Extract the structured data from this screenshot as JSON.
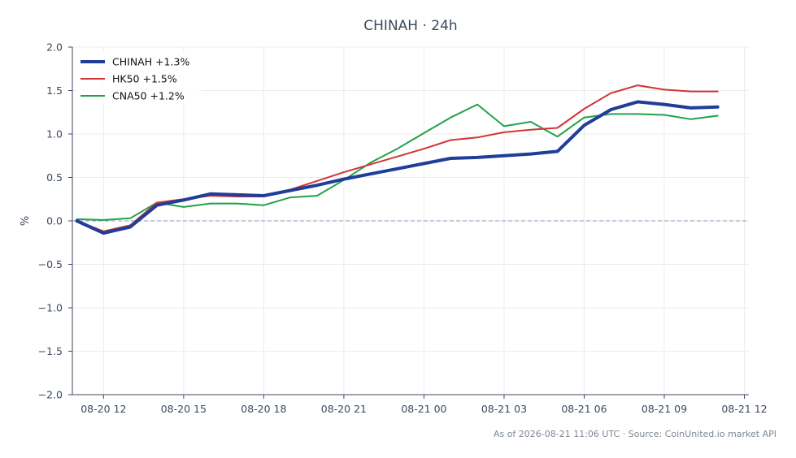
{
  "chart_data": {
    "type": "line",
    "title": "CHINAH · 24h",
    "ylabel": "%",
    "xlabel": "",
    "ylim": [
      -2.0,
      2.0
    ],
    "yticks": [
      -2.0,
      -1.5,
      -1.0,
      -0.5,
      0.0,
      0.5,
      1.0,
      1.5,
      2.0
    ],
    "ytick_labels": [
      "−2.0",
      "−1.5",
      "−1.0",
      "−0.5",
      "0.0",
      "0.5",
      "1.0",
      "1.5",
      "2.0"
    ],
    "xlim": [
      "2026-08-20 10:50",
      "2026-08-21 12:10"
    ],
    "xticks": [
      "2026-08-20 12:00",
      "2026-08-20 15:00",
      "2026-08-20 18:00",
      "2026-08-20 21:00",
      "2026-08-21 00:00",
      "2026-08-21 03:00",
      "2026-08-21 06:00",
      "2026-08-21 09:00",
      "2026-08-21 12:00"
    ],
    "xtick_labels": [
      "08-20 12",
      "08-20 15",
      "08-20 18",
      "08-20 21",
      "08-21 00",
      "08-21 03",
      "08-21 06",
      "08-21 09",
      "08-21 12"
    ],
    "x": [
      "2026-08-20 11:00",
      "2026-08-20 12:00",
      "2026-08-20 13:00",
      "2026-08-20 14:00",
      "2026-08-20 15:00",
      "2026-08-20 16:00",
      "2026-08-20 17:00",
      "2026-08-20 18:00",
      "2026-08-20 19:00",
      "2026-08-20 20:00",
      "2026-08-20 21:00",
      "2026-08-20 22:00",
      "2026-08-20 23:00",
      "2026-08-21 00:00",
      "2026-08-21 01:00",
      "2026-08-21 02:00",
      "2026-08-21 03:00",
      "2026-08-21 04:00",
      "2026-08-21 05:00",
      "2026-08-21 06:00",
      "2026-08-21 07:00",
      "2026-08-21 08:00",
      "2026-08-21 09:00",
      "2026-08-21 10:00",
      "2026-08-21 11:00"
    ],
    "series": [
      {
        "name": "CHINAH +1.3%",
        "color": "#1f3d99",
        "values": [
          0.0,
          -0.14,
          -0.07,
          0.18,
          0.24,
          0.31,
          0.3,
          0.29,
          0.35,
          0.41,
          0.48,
          0.54,
          0.6,
          0.66,
          0.72,
          0.73,
          0.75,
          0.77,
          0.8,
          1.1,
          1.28,
          1.37,
          1.34,
          1.3,
          1.31
        ]
      },
      {
        "name": "HK50 +1.5%",
        "color": "#d03535",
        "values": [
          0.0,
          -0.12,
          -0.05,
          0.21,
          0.25,
          0.29,
          0.28,
          0.28,
          0.36,
          0.46,
          0.56,
          0.65,
          0.74,
          0.83,
          0.93,
          0.96,
          1.02,
          1.05,
          1.07,
          1.29,
          1.47,
          1.56,
          1.51,
          1.49,
          1.49
        ]
      },
      {
        "name": "CNA50 +1.2%",
        "color": "#22a14a",
        "values": [
          0.02,
          0.01,
          0.03,
          0.21,
          0.16,
          0.2,
          0.2,
          0.18,
          0.27,
          0.29,
          0.47,
          0.67,
          0.83,
          1.01,
          1.19,
          1.34,
          1.09,
          1.14,
          0.97,
          1.19,
          1.23,
          1.23,
          1.22,
          1.17,
          1.21
        ]
      }
    ],
    "zero_line": true,
    "grid": true,
    "legend_position": "top-left"
  },
  "footer": {
    "text": "As of 2026-08-21 11:06 UTC · Source: CoinUnited.io market API"
  }
}
